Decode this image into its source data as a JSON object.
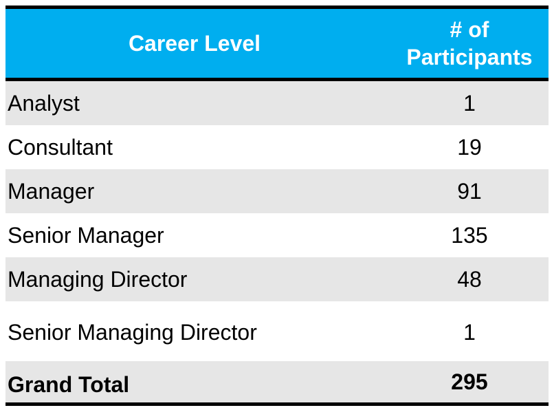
{
  "header": {
    "career_level": "Career Level",
    "participants_line1": "# of",
    "participants_line2": "Participants"
  },
  "rows": [
    {
      "level": "Analyst",
      "count": "1"
    },
    {
      "level": "Consultant",
      "count": "19"
    },
    {
      "level": "Manager",
      "count": "91"
    },
    {
      "level": "Senior Manager",
      "count": "135"
    },
    {
      "level": "Managing Director",
      "count": "48"
    },
    {
      "level": "Senior Managing Director",
      "count": "1"
    }
  ],
  "total": {
    "label": "Grand Total",
    "count": "295"
  },
  "colors": {
    "header_bg": "#00aeef",
    "row_shade": "#e6e6e6",
    "rule": "#000000"
  }
}
